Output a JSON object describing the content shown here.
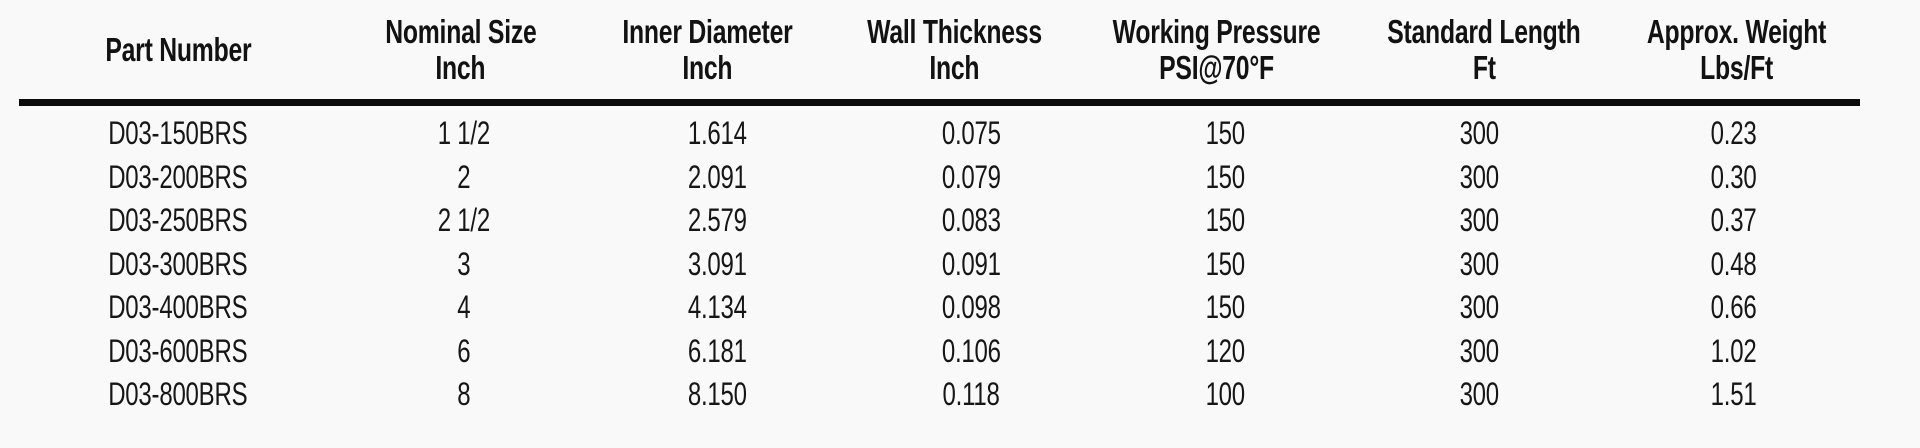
{
  "page": {
    "background_color": "#f9f9f9",
    "header_text_color": "#121212",
    "body_text_color": "#161616",
    "rule_color": "#0b0b0b"
  },
  "table": {
    "columns": [
      {
        "id": "part-number",
        "line1": "Part Number",
        "line2": ""
      },
      {
        "id": "nominal-size",
        "line1": "Nominal Size",
        "line2": "Inch"
      },
      {
        "id": "inner-diameter",
        "line1": "Inner Diameter",
        "line2": "Inch"
      },
      {
        "id": "wall-thickness",
        "line1": "Wall Thickness",
        "line2": "Inch"
      },
      {
        "id": "working-pressure",
        "line1": "Working Pressure",
        "line2": "PSI@70°F"
      },
      {
        "id": "standard-length",
        "line1": "Standard Length",
        "line2": "Ft"
      },
      {
        "id": "approx-weight",
        "line1": "Approx. Weight",
        "line2": "Lbs/Ft"
      }
    ],
    "rows": [
      [
        "D03-150BRS",
        "1 1/2",
        "1.614",
        "0.075",
        "150",
        "300",
        "0.23"
      ],
      [
        "D03-200BRS",
        "2",
        "2.091",
        "0.079",
        "150",
        "300",
        "0.30"
      ],
      [
        "D03-250BRS",
        "2 1/2",
        "2.579",
        "0.083",
        "150",
        "300",
        "0.37"
      ],
      [
        "D03-300BRS",
        "3",
        "3.091",
        "0.091",
        "150",
        "300",
        "0.48"
      ],
      [
        "D03-400BRS",
        "4",
        "4.134",
        "0.098",
        "150",
        "300",
        "0.66"
      ],
      [
        "D03-600BRS",
        "6",
        "6.181",
        "0.106",
        "120",
        "300",
        "1.02"
      ],
      [
        "D03-800BRS",
        "8",
        "8.150",
        "0.118",
        "100",
        "300",
        "1.51"
      ]
    ]
  }
}
